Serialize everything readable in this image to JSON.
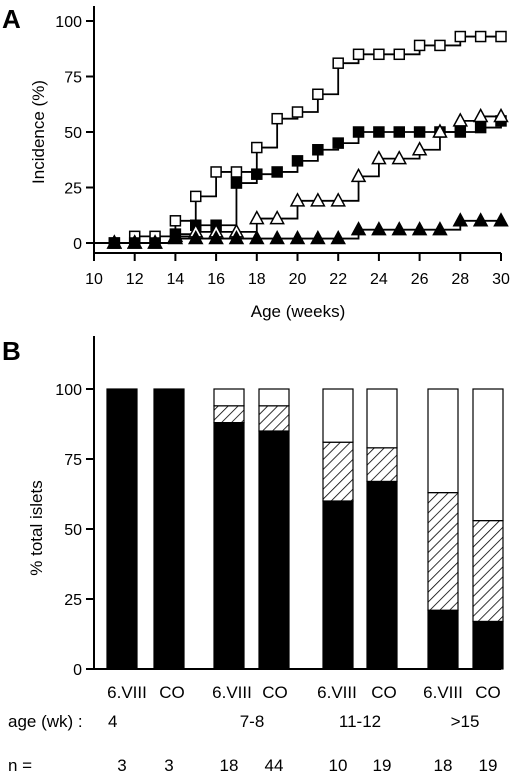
{
  "panel_a": {
    "letter": "A",
    "xlabel": "Age (weeks)",
    "ylabel": "Incidence (%)"
  },
  "panel_b": {
    "letter": "B",
    "ylabel": "% total islets",
    "hatch_pattern": "diagonal-hatch",
    "age_prefix": "age (wk) :",
    "n_prefix": "n ="
  },
  "colors": {
    "ink": "#000000",
    "background": "#ffffff"
  },
  "chart_data": [
    {
      "type": "line",
      "step": true,
      "title": "",
      "xlabel": "Age (weeks)",
      "ylabel": "Incidence (%)",
      "xlim": [
        10,
        30
      ],
      "ylim": [
        0,
        100
      ],
      "xticks": [
        10,
        12,
        14,
        16,
        18,
        20,
        22,
        24,
        26,
        28,
        30
      ],
      "yticks": [
        0,
        25,
        50,
        75,
        100
      ],
      "series": [
        {
          "marker": "open-square",
          "x": [
            11,
            12,
            13,
            14,
            15,
            16,
            17,
            18,
            19,
            20,
            21,
            22,
            23,
            24,
            25,
            26,
            27,
            28,
            29,
            30
          ],
          "y": [
            0,
            3,
            3,
            10,
            21,
            32,
            32,
            43,
            56,
            59,
            67,
            81,
            85,
            85,
            85,
            89,
            89,
            93,
            93,
            93
          ]
        },
        {
          "marker": "filled-square",
          "x": [
            11,
            12,
            13,
            14,
            15,
            16,
            17,
            18,
            19,
            20,
            21,
            22,
            23,
            24,
            25,
            26,
            27,
            28,
            29,
            30
          ],
          "y": [
            0,
            0,
            0,
            4,
            8,
            8,
            27,
            31,
            32,
            37,
            42,
            45,
            50,
            50,
            50,
            50,
            50,
            50,
            52,
            55
          ]
        },
        {
          "marker": "open-triangle",
          "x": [
            11,
            12,
            13,
            14,
            15,
            16,
            17,
            18,
            19,
            20,
            21,
            22,
            23,
            24,
            25,
            26,
            27,
            28,
            29,
            30
          ],
          "y": [
            0,
            0,
            0,
            3,
            5,
            5,
            5,
            11,
            11,
            19,
            19,
            19,
            30,
            38,
            38,
            42,
            50,
            55,
            57,
            57
          ]
        },
        {
          "marker": "filled-triangle",
          "x": [
            11,
            12,
            13,
            14,
            15,
            16,
            17,
            18,
            19,
            20,
            21,
            22,
            23,
            24,
            25,
            26,
            27,
            28,
            29,
            30
          ],
          "y": [
            0,
            0,
            0,
            2,
            2,
            2,
            2,
            2,
            2,
            2,
            2,
            2,
            6,
            6,
            6,
            6,
            6,
            10,
            10,
            10
          ]
        }
      ]
    },
    {
      "type": "bar",
      "stacked": true,
      "title": "",
      "xlabel": "",
      "ylabel": "% total islets",
      "ylim": [
        0,
        100
      ],
      "yticks": [
        0,
        25,
        50,
        75,
        100
      ],
      "categories": [
        "6.VIII",
        "CO",
        "6.VIII",
        "CO",
        "6.VIII",
        "CO",
        "6.VIII",
        "CO"
      ],
      "groups": [
        {
          "age": "4",
          "indices": [
            0,
            1
          ],
          "n": [
            "3",
            "3"
          ]
        },
        {
          "age": "7-8",
          "indices": [
            2,
            3
          ],
          "n": [
            "18",
            "44"
          ]
        },
        {
          "age": "11-12",
          "indices": [
            4,
            5
          ],
          "n": [
            "10",
            "19"
          ]
        },
        {
          "age": ">15",
          "indices": [
            6,
            7
          ],
          "n": [
            "18",
            "19"
          ]
        }
      ],
      "series": [
        {
          "fill": "#000000",
          "values": [
            100,
            100,
            88,
            85,
            60,
            67,
            21,
            17
          ]
        },
        {
          "fill": "diagonal-hatch",
          "values": [
            0,
            0,
            6,
            9,
            21,
            12,
            42,
            36
          ]
        },
        {
          "fill": "#ffffff",
          "values": [
            0,
            0,
            6,
            6,
            19,
            21,
            37,
            47
          ]
        }
      ]
    }
  ]
}
